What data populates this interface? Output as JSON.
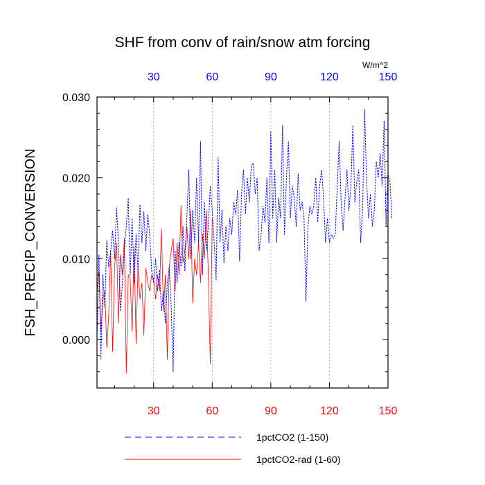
{
  "chart_data": {
    "type": "line",
    "title": "SHF from conv of rain/snow atm forcing",
    "xlabel": "",
    "ylabel": "FSH_PRECIP_CONVERSION",
    "units": "W/m^2",
    "grid": "vertical dotted lines at x ticks",
    "xlim": [
      1,
      150
    ],
    "ylim": [
      -0.006,
      0.03
    ],
    "x_ticks": [
      30,
      60,
      90,
      120,
      150
    ],
    "y_ticks": [
      0.0,
      0.01,
      0.02,
      0.03
    ],
    "y_tick_labels": [
      "0.000",
      "0.010",
      "0.020",
      "0.030"
    ],
    "top_axis_color": "#0000ff",
    "bottom_axis_color": "#ff0000",
    "legend_position": "bottom",
    "series": [
      {
        "name": "1pctCO2 (1-150)",
        "color": "#0000ff",
        "dash": "dashed",
        "values": [
          0.0,
          0.0105,
          -0.0024,
          0.008,
          0.004,
          0.0122,
          0.009,
          0.011,
          0.0135,
          0.01,
          0.0163,
          0.012,
          0.0035,
          0.007,
          0.011,
          0.014,
          0.0175,
          0.008,
          0.015,
          0.007,
          0.013,
          0.0085,
          0.0167,
          0.012,
          0.0158,
          0.011,
          0.0155,
          0.013,
          0.0085,
          0.007,
          0.01,
          0.006,
          0.0086,
          0.0035,
          0.006,
          0.002,
          0.007,
          0.009,
          0.004,
          -0.004,
          0.011,
          0.007,
          0.012,
          0.009,
          0.014,
          0.0085,
          0.015,
          0.021,
          0.01,
          0.016,
          0.012,
          0.02,
          0.012,
          0.0245,
          0.008,
          0.017,
          0.011,
          0.014,
          0.019,
          0.016,
          0.012,
          0.0073,
          0.0225,
          0.012,
          0.016,
          0.0095,
          0.014,
          0.011,
          0.015,
          0.013,
          0.017,
          0.0155,
          0.0185,
          0.0097,
          0.018,
          0.021,
          0.0155,
          0.02,
          0.017,
          0.0215,
          0.0218,
          0.018,
          0.02,
          0.011,
          0.013,
          0.0165,
          0.0145,
          0.02,
          0.012,
          0.0258,
          0.015,
          0.021,
          0.012,
          0.0175,
          0.015,
          0.0265,
          0.013,
          0.02,
          0.0245,
          0.015,
          0.019,
          0.0175,
          0.014,
          0.0205,
          0.016,
          0.017,
          0.015,
          0.0047,
          0.014,
          0.0165,
          0.0155,
          0.0165,
          0.02,
          0.0145,
          0.019,
          0.021,
          0.0175,
          0.012,
          0.015,
          0.012,
          0.013,
          0.0125,
          0.013,
          0.019,
          0.0245,
          0.017,
          0.0135,
          0.0175,
          0.021,
          0.016,
          0.019,
          0.0265,
          0.017,
          0.0195,
          0.021,
          0.012,
          0.016,
          0.0285,
          0.02,
          0.015,
          0.018,
          0.014,
          0.016,
          0.022,
          0.02,
          0.023,
          0.019,
          0.027,
          0.014,
          0.0205,
          0.0195,
          0.015
        ]
      },
      {
        "name": "1pctCO2-rad (1-60)",
        "color": "#ff0000",
        "dash": "solid",
        "values": [
          0.006,
          0.0085,
          0.001,
          0.005,
          0.006,
          -0.001,
          0.003,
          0.011,
          -0.0015,
          0.009,
          0.012,
          0.002,
          0.0105,
          0.008,
          0.0125,
          -0.0042,
          0.008,
          0.0075,
          0.001,
          0.0115,
          -0.0005,
          0.009,
          0.005,
          0.007,
          0.0005,
          0.0088,
          0.007,
          0.006,
          0.008,
          0.0075,
          0.005,
          0.008,
          0.006,
          0.0137,
          0.0035,
          0.008,
          -0.0025,
          0.009,
          0.011,
          0.0125,
          0.006,
          0.012,
          0.008,
          0.0166,
          0.0095,
          0.011,
          0.014,
          0.01,
          0.016,
          0.0045,
          0.01,
          0.008,
          0.012,
          0.007,
          0.013,
          0.01,
          0.016,
          0.008,
          -0.003,
          0.015
        ]
      }
    ]
  }
}
